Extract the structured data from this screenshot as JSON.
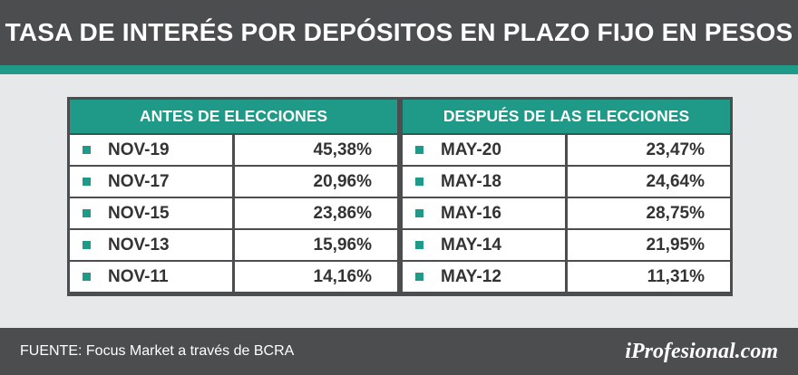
{
  "title": "TASA DE INTERÉS POR DEPÓSITOS EN PLAZO FIJO EN PESOS",
  "colors": {
    "header_bg": "#4b4d4f",
    "accent": "#1f9a88",
    "background": "#e6e8ea",
    "cell_bg": "#ffffff",
    "text": "#333333"
  },
  "chart_data": {
    "type": "table",
    "title": "TASA DE INTERÉS POR DEPÓSITOS EN PLAZO FIJO EN PESOS",
    "groups": [
      {
        "header": "ANTES DE ELECCIONES",
        "rows": [
          {
            "label": "NOV-19",
            "value": "45,38%"
          },
          {
            "label": "NOV-17",
            "value": "20,96%"
          },
          {
            "label": "NOV-15",
            "value": "23,86%"
          },
          {
            "label": "NOV-13",
            "value": "15,96%"
          },
          {
            "label": "NOV-11",
            "value": "14,16%"
          }
        ]
      },
      {
        "header": "DESPUÉS DE LAS ELECCIONES",
        "rows": [
          {
            "label": "MAY-20",
            "value": "23,47%"
          },
          {
            "label": "MAY-18",
            "value": "24,64%"
          },
          {
            "label": "MAY-16",
            "value": "28,75%"
          },
          {
            "label": "MAY-14",
            "value": "21,95%"
          },
          {
            "label": "MAY-12",
            "value": "11,31%"
          }
        ]
      }
    ]
  },
  "footer": {
    "source": "FUENTE: Focus Market a través de BCRA",
    "brand": "iProfesional.com"
  }
}
